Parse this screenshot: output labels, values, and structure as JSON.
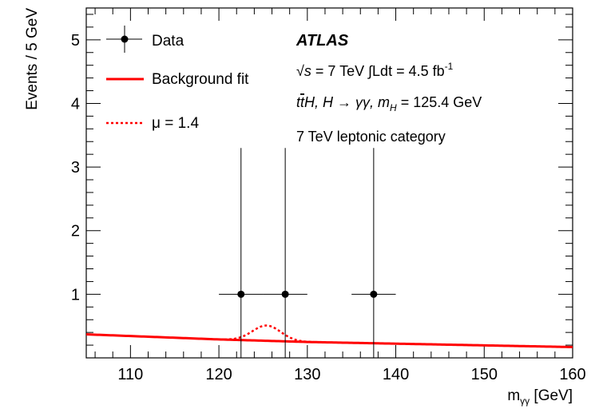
{
  "chart_data": {
    "type": "scatter",
    "xlabel": "m",
    "xlabel_sub": "γγ",
    "xlabel_unit": "[GeV]",
    "ylabel": "Events / 5 GeV",
    "xlim": [
      105,
      160
    ],
    "ylim": [
      0,
      5.5
    ],
    "xticks": [
      110,
      120,
      130,
      140,
      150,
      160
    ],
    "yticks": [
      1,
      2,
      3,
      4,
      5
    ],
    "x_minor_step": 2,
    "y_minor_step": 0.2,
    "grid": false,
    "legend_position": "top-left",
    "legend": [
      {
        "label": "Data",
        "style": "marker-errorbar",
        "color": "#000000"
      },
      {
        "label": "Background fit",
        "style": "solid",
        "color": "#ff0000"
      },
      {
        "label": "μ = 1.4",
        "style": "dotted",
        "color": "#ff0000"
      }
    ],
    "data_points": [
      {
        "x": 122.5,
        "y": 1,
        "x_err": 2.5,
        "y_err_low": 1,
        "y_err_high": 2.3
      },
      {
        "x": 127.5,
        "y": 1,
        "x_err": 2.5,
        "y_err_low": 1,
        "y_err_high": 2.3
      },
      {
        "x": 137.5,
        "y": 1,
        "x_err": 2.5,
        "y_err_low": 1,
        "y_err_high": 2.3
      }
    ],
    "background_fit": {
      "x": [
        105,
        120,
        130,
        145,
        160
      ],
      "y": [
        0.37,
        0.29,
        0.25,
        0.21,
        0.17
      ]
    },
    "signal": {
      "mass": 125.4,
      "sigma": 1.6,
      "peak_height": 0.24
    }
  },
  "annotations": {
    "experiment": "ATLAS",
    "line1_sqrt": "√",
    "line1_s": "s",
    "line1_energy": " = 7 TeV ",
    "line1_int": "∫",
    "line1_lumi": "Ldt = 4.5 fb",
    "line1_lumi_exp": "-1",
    "line2_t": "t",
    "line2_tbar": "t",
    "line2_rest": "H, H → γγ, m",
    "line2_sub": "H",
    "line2_value": " = 125.4 GeV",
    "line3": "7 TeV leptonic category"
  }
}
